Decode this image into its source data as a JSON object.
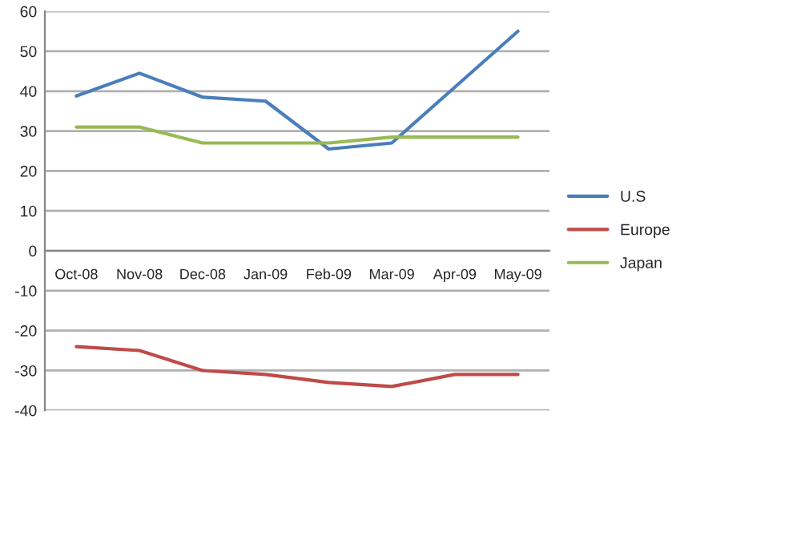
{
  "chart_data": {
    "type": "line",
    "categories": [
      "Oct-08",
      "Nov-08",
      "Dec-08",
      "Jan-09",
      "Feb-09",
      "Mar-09",
      "Apr-09",
      "May-09"
    ],
    "series": [
      {
        "name": "U.S",
        "color": "#4a7ebb",
        "values": [
          38.8,
          44.5,
          38.5,
          37.5,
          25.5,
          27,
          41,
          55
        ]
      },
      {
        "name": "Europe",
        "color": "#be4b48",
        "values": [
          -24,
          -25,
          -30,
          -31,
          -33,
          -34,
          -31,
          -31
        ]
      },
      {
        "name": "Japan",
        "color": "#98b954",
        "values": [
          31,
          31,
          27,
          27,
          27,
          28.5,
          28.5,
          28.5
        ]
      }
    ],
    "ylim": [
      -40,
      60
    ],
    "yticks": [
      -40,
      -30,
      -20,
      -10,
      0,
      10,
      20,
      30,
      40,
      50,
      60
    ],
    "grid": "y",
    "legend": "right",
    "marker": "none",
    "line_style": "solid"
  }
}
